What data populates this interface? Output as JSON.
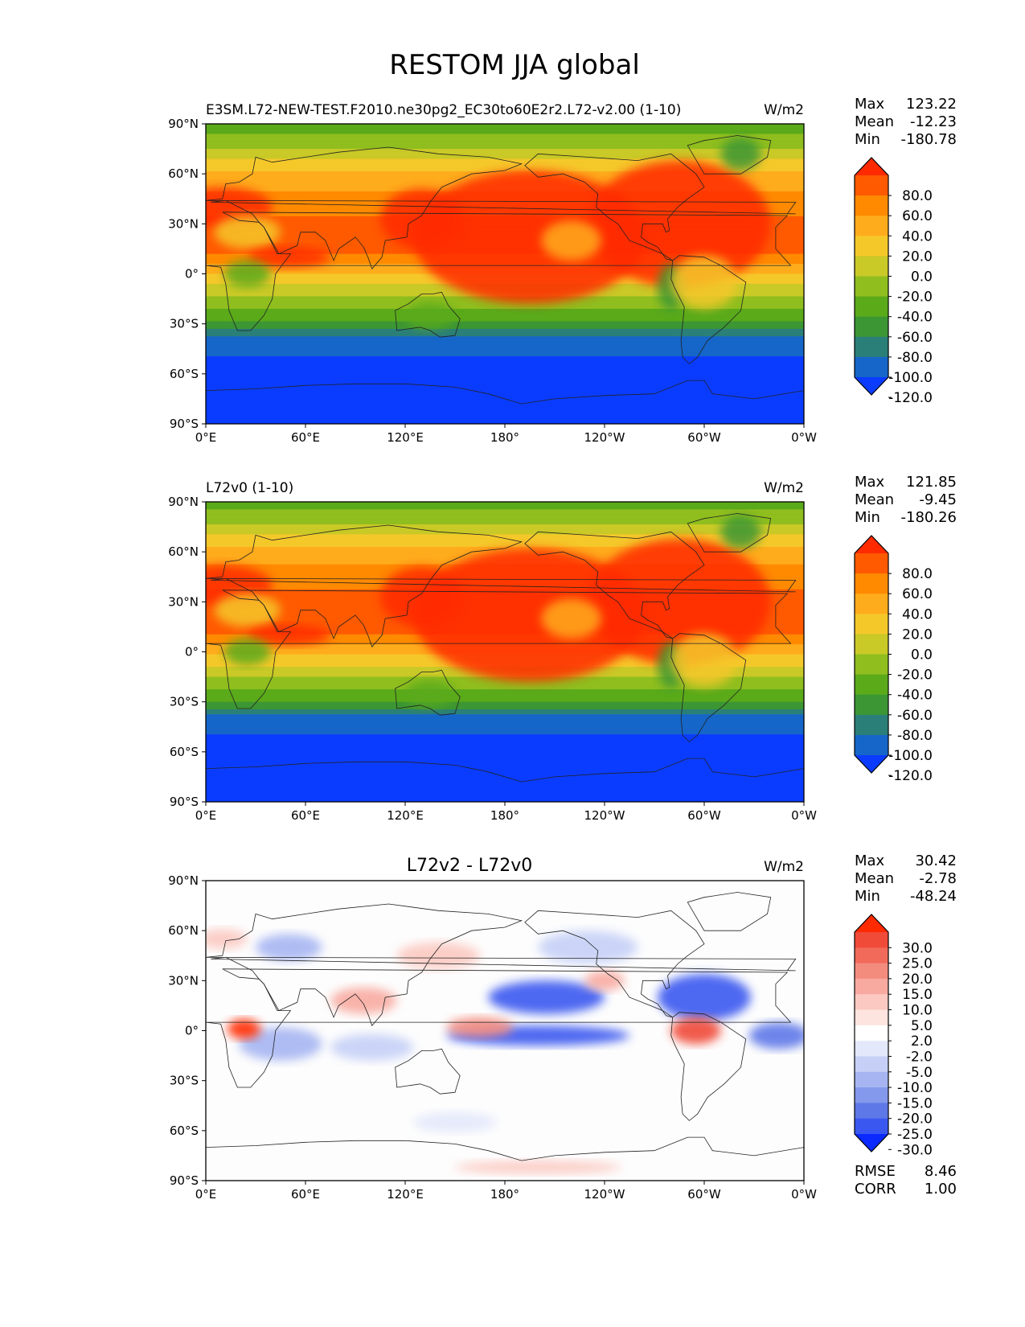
{
  "figure": {
    "title": "RESTOM JJA global"
  },
  "chart_data": [
    {
      "type": "heatmap",
      "panel": "test",
      "title_left": "E3SM.L72-NEW-TEST.F2010.ne30pg2_EC30to60E2r2.L72-v2.00 (1-10)",
      "title_center": "",
      "units": "W/m2",
      "x_tick_labels": [
        "0°E",
        "60°E",
        "120°E",
        "180°",
        "120°W",
        "60°W",
        "0°W"
      ],
      "y_tick_labels": [
        "90°N",
        "60°N",
        "30°N",
        "0°",
        "30°S",
        "60°S",
        "90°S"
      ],
      "xlim": [
        0,
        360
      ],
      "ylim": [
        -90,
        90
      ],
      "stats": [
        {
          "label": "Max",
          "value": "123.22"
        },
        {
          "label": "Mean",
          "value": "-12.23"
        },
        {
          "label": "Min",
          "value": "-180.78"
        }
      ],
      "colorbar": {
        "labels": [
          "80.0",
          "60.0",
          "40.0",
          "20.0",
          "0.0",
          "-20.0",
          "-40.0",
          "-60.0",
          "-80.0",
          "-100.0",
          "-120.0"
        ],
        "colors": [
          "#ff2a00",
          "#ff5a00",
          "#ff8a00",
          "#ffac1c",
          "#f5c82a",
          "#c9c927",
          "#8fbe1e",
          "#5aaa1a",
          "#3c9634",
          "#2a7f78",
          "#1566c8",
          "#0a3cff"
        ]
      },
      "lat_profile": [
        {
          "lat": 90,
          "v": -55
        },
        {
          "lat": 75,
          "v": -20
        },
        {
          "lat": 60,
          "v": 25
        },
        {
          "lat": 45,
          "v": 45
        },
        {
          "lat": 30,
          "v": 65
        },
        {
          "lat": 15,
          "v": 70
        },
        {
          "lat": 0,
          "v": 20
        },
        {
          "lat": -15,
          "v": -25
        },
        {
          "lat": -30,
          "v": -65
        },
        {
          "lat": -40,
          "v": -110
        },
        {
          "lat": -60,
          "v": -130
        },
        {
          "lat": -90,
          "v": -130
        }
      ]
    },
    {
      "type": "heatmap",
      "panel": "reference",
      "title_left": "L72v0 (1-10)",
      "title_center": "",
      "units": "W/m2",
      "x_tick_labels": [
        "0°E",
        "60°E",
        "120°E",
        "180°",
        "120°W",
        "60°W",
        "0°W"
      ],
      "y_tick_labels": [
        "90°N",
        "60°N",
        "30°N",
        "0°",
        "30°S",
        "60°S",
        "90°S"
      ],
      "xlim": [
        0,
        360
      ],
      "ylim": [
        -90,
        90
      ],
      "stats": [
        {
          "label": "Max",
          "value": "121.85"
        },
        {
          "label": "Mean",
          "value": "-9.45"
        },
        {
          "label": "Min",
          "value": "-180.26"
        }
      ],
      "colorbar": {
        "labels": [
          "80.0",
          "60.0",
          "40.0",
          "20.0",
          "0.0",
          "-20.0",
          "-40.0",
          "-60.0",
          "-80.0",
          "-100.0",
          "-120.0"
        ],
        "colors": [
          "#ff2a00",
          "#ff5a00",
          "#ff8a00",
          "#ffac1c",
          "#f5c82a",
          "#c9c927",
          "#8fbe1e",
          "#5aaa1a",
          "#3c9634",
          "#2a7f78",
          "#1566c8",
          "#0a3cff"
        ]
      },
      "lat_profile": [
        {
          "lat": 90,
          "v": -50
        },
        {
          "lat": 75,
          "v": -15
        },
        {
          "lat": 60,
          "v": 30
        },
        {
          "lat": 45,
          "v": 50
        },
        {
          "lat": 30,
          "v": 70
        },
        {
          "lat": 15,
          "v": 75
        },
        {
          "lat": 0,
          "v": 25
        },
        {
          "lat": -15,
          "v": -20
        },
        {
          "lat": -30,
          "v": -60
        },
        {
          "lat": -40,
          "v": -110
        },
        {
          "lat": -60,
          "v": -130
        },
        {
          "lat": -90,
          "v": -130
        }
      ]
    },
    {
      "type": "heatmap",
      "panel": "difference",
      "title_left": "",
      "title_center": "L72v2 - L72v0",
      "units": "W/m2",
      "x_tick_labels": [
        "0°E",
        "60°E",
        "120°E",
        "180°",
        "120°W",
        "60°W",
        "0°W"
      ],
      "y_tick_labels": [
        "90°N",
        "60°N",
        "30°N",
        "0°",
        "30°S",
        "60°S",
        "90°S"
      ],
      "xlim": [
        0,
        360
      ],
      "ylim": [
        -90,
        90
      ],
      "stats": [
        {
          "label": "Max",
          "value": "30.42"
        },
        {
          "label": "Mean",
          "value": "-2.78"
        },
        {
          "label": "Min",
          "value": "-48.24"
        }
      ],
      "colorbar": {
        "labels": [
          "30.0",
          "25.0",
          "20.0",
          "15.0",
          "10.0",
          "5.0",
          "2.0",
          "-2.0",
          "-5.0",
          "-10.0",
          "-15.0",
          "-20.0",
          "-25.0",
          "-30.0"
        ],
        "colors": [
          "#ff2a00",
          "#f04a38",
          "#f26a5a",
          "#f48c7e",
          "#f8aaa0",
          "#fbc9c1",
          "#fde4df",
          "#ffffff",
          "#e3e8fb",
          "#c6d0f7",
          "#a6b5f2",
          "#8498ec",
          "#5f78e8",
          "#3a58f0",
          "#0a2aff"
        ]
      },
      "rmse": {
        "label": "RMSE",
        "value": "8.46"
      },
      "corr": {
        "label": "CORR",
        "value": "1.00"
      }
    }
  ]
}
